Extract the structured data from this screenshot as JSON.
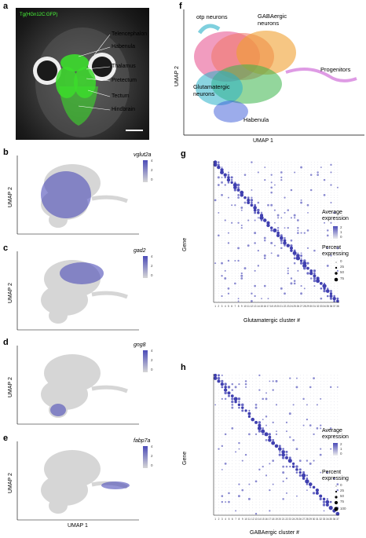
{
  "panels": {
    "a": {
      "letter": "a",
      "transgene_label": "Tg(HGn12C:GFP)",
      "structures": [
        "Telencephalon",
        "Habenula",
        "Thalamus",
        "Pretectum",
        "Tectum",
        "Hindbrain"
      ]
    },
    "f": {
      "letter": "f",
      "cluster_labels": {
        "otp": "otp neurons",
        "gaba": "GABAergic neurons",
        "progenitors": "Progenitors",
        "glut": "Glutamatergic neurons",
        "habenula": "Habenula"
      },
      "xlabel": "UMAP 1",
      "ylabel": "UMAP 2"
    },
    "feature_plots": [
      {
        "letter": "b",
        "gene": "vglut2a",
        "ticks": [
          "4",
          "2",
          "0"
        ],
        "xlabel": "",
        "ylabel": "UMAP 2"
      },
      {
        "letter": "c",
        "gene": "gad2",
        "ticks": [
          "4",
          "2",
          "0"
        ],
        "xlabel": "",
        "ylabel": "UMAP 2"
      },
      {
        "letter": "d",
        "gene": "gng8",
        "ticks": [
          "4",
          "2",
          "0"
        ],
        "xlabel": "",
        "ylabel": "UMAP 2"
      },
      {
        "letter": "e",
        "gene": "fabp7a",
        "ticks": [
          "4",
          "2",
          "0"
        ],
        "xlabel": "UMAP 1",
        "ylabel": "UMAP 2"
      }
    ],
    "g": {
      "letter": "g",
      "xlabel": "Glutamatergic cluster #",
      "ylabel": "Gene",
      "legend_avg": "Average expression",
      "legend_pct": "Percent expressing",
      "legend_avg_ticks": [
        "2",
        "1",
        "0"
      ],
      "legend_pct_ticks": [
        "0",
        "25",
        "50",
        "75"
      ],
      "num_clusters": 38
    },
    "h": {
      "letter": "h",
      "xlabel": "GABAergic cluster #",
      "ylabel": "Gene",
      "legend_avg": "Average expression",
      "legend_pct": "Percent expressing",
      "legend_avg_ticks": [
        "2",
        "1",
        "0"
      ],
      "legend_pct_ticks": [
        "0",
        "25",
        "50",
        "75",
        "100"
      ],
      "num_clusters": 37
    }
  },
  "colors": {
    "gfp": "#3cdc2c",
    "expr_high": "#4b4bb8",
    "expr_low": "#d6d6d6",
    "dot": "#3f3fb0"
  }
}
